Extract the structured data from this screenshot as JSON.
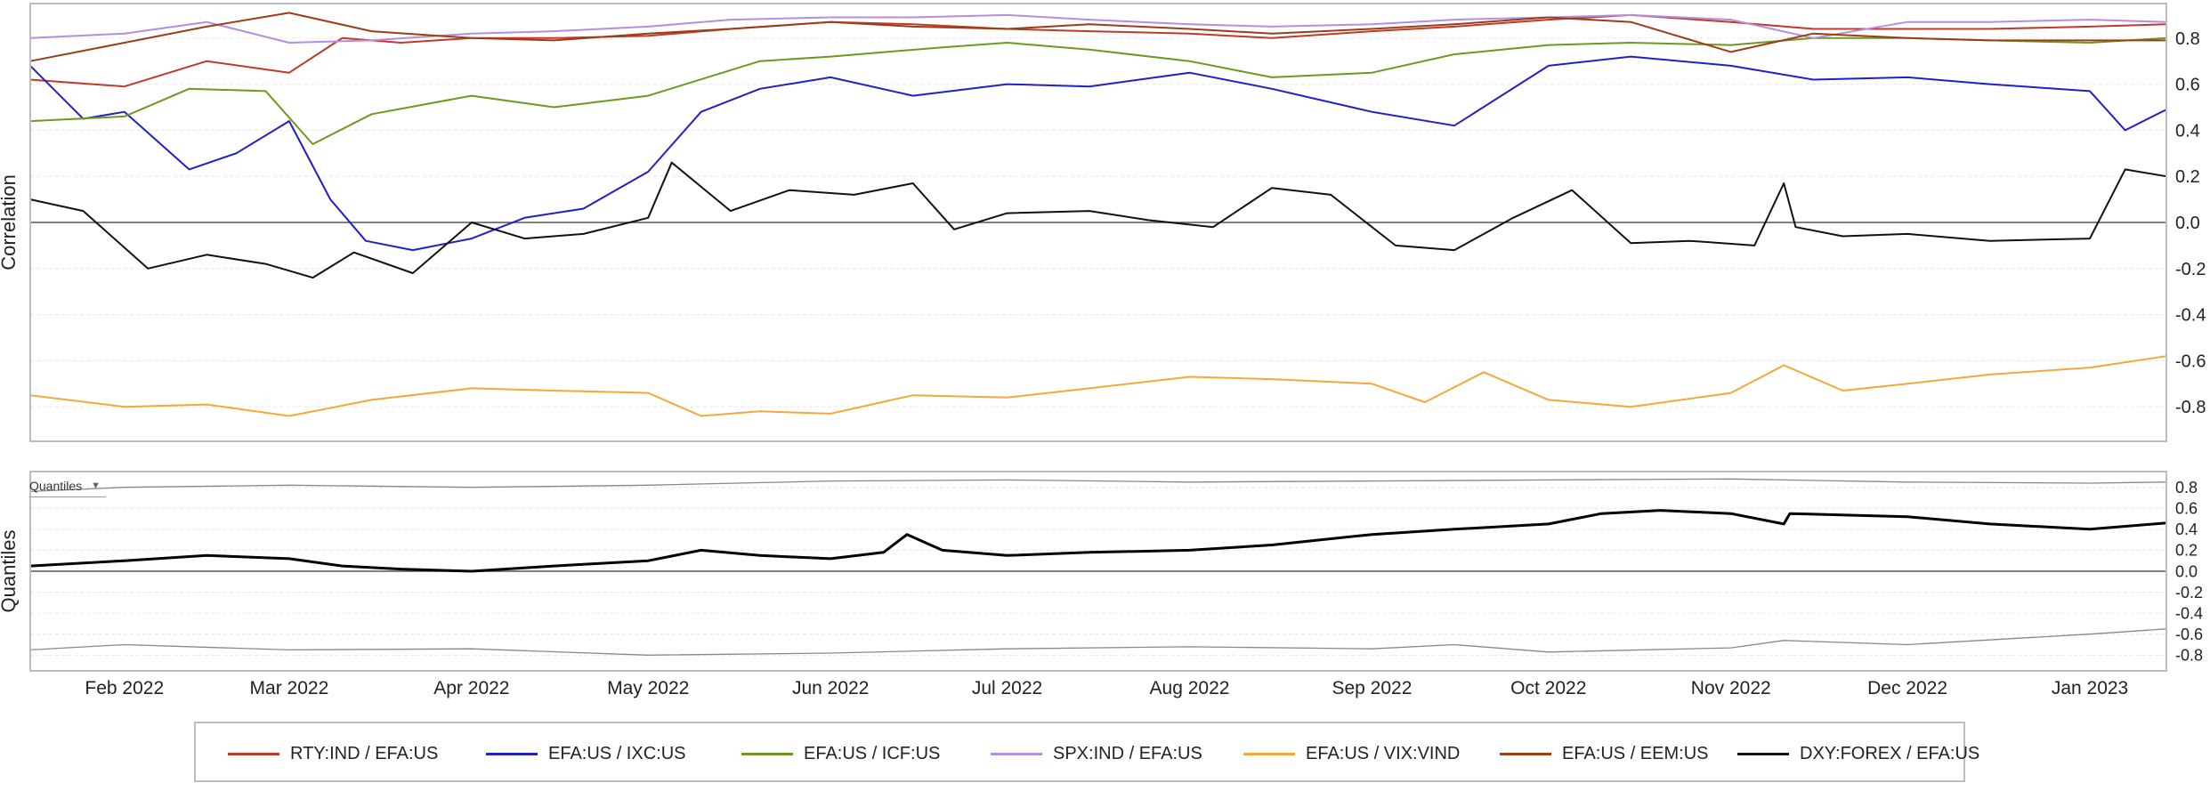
{
  "chart_data": [
    {
      "type": "line",
      "ylabel": "Correlation",
      "ylim": [
        -0.95,
        0.95
      ],
      "y_ticks": [
        "0.8",
        "0.6",
        "0.4",
        "0.2",
        "0.0",
        "-0.2",
        "-0.4",
        "-0.6",
        "-0.8"
      ],
      "x_ticks": [
        "Feb 2022",
        "Mar 2022",
        "Apr 2022",
        "May 2022",
        "Jun 2022",
        "Jul 2022",
        "Aug 2022",
        "Sep 2022",
        "Oct 2022",
        "Nov 2022",
        "Dec 2022",
        "Jan 2023"
      ],
      "xlim": [
        "2022-01-16",
        "2023-01-14"
      ],
      "grid": true,
      "series": [
        {
          "name": "RTY:IND / EFA:US",
          "color": "#c0392b",
          "x": [
            "2022-01-16",
            "2022-02-01",
            "2022-02-15",
            "2022-03-01",
            "2022-03-10",
            "2022-03-20",
            "2022-04-01",
            "2022-04-15",
            "2022-05-01",
            "2022-05-15",
            "2022-06-01",
            "2022-06-15",
            "2022-07-01",
            "2022-07-15",
            "2022-08-01",
            "2022-08-15",
            "2022-09-01",
            "2022-09-15",
            "2022-10-01",
            "2022-10-15",
            "2022-11-01",
            "2022-11-15",
            "2022-12-01",
            "2022-12-15",
            "2023-01-01",
            "2023-01-14"
          ],
          "values": [
            0.62,
            0.59,
            0.7,
            0.65,
            0.8,
            0.78,
            0.8,
            0.8,
            0.81,
            0.84,
            0.87,
            0.86,
            0.84,
            0.83,
            0.82,
            0.8,
            0.83,
            0.85,
            0.88,
            0.9,
            0.87,
            0.84,
            0.84,
            0.84,
            0.85,
            0.86
          ]
        },
        {
          "name": "EFA:US / IXC:US",
          "color": "#2020c8",
          "x": [
            "2022-01-16",
            "2022-01-25",
            "2022-02-01",
            "2022-02-12",
            "2022-02-20",
            "2022-03-01",
            "2022-03-08",
            "2022-03-14",
            "2022-03-22",
            "2022-04-01",
            "2022-04-10",
            "2022-04-20",
            "2022-05-01",
            "2022-05-10",
            "2022-05-20",
            "2022-06-01",
            "2022-06-15",
            "2022-07-01",
            "2022-07-15",
            "2022-08-01",
            "2022-08-15",
            "2022-09-01",
            "2022-09-15",
            "2022-10-01",
            "2022-10-15",
            "2022-11-01",
            "2022-11-15",
            "2022-12-01",
            "2022-12-15",
            "2023-01-01",
            "2023-01-07",
            "2023-01-14"
          ],
          "values": [
            0.68,
            0.45,
            0.48,
            0.23,
            0.3,
            0.44,
            0.1,
            -0.08,
            -0.12,
            -0.07,
            0.02,
            0.06,
            0.22,
            0.48,
            0.58,
            0.63,
            0.55,
            0.6,
            0.59,
            0.65,
            0.58,
            0.48,
            0.42,
            0.68,
            0.72,
            0.68,
            0.62,
            0.63,
            0.6,
            0.57,
            0.4,
            0.49
          ]
        },
        {
          "name": "EFA:US / ICF:US",
          "color": "#6b9a1e",
          "x": [
            "2022-01-16",
            "2022-02-01",
            "2022-02-12",
            "2022-02-25",
            "2022-03-05",
            "2022-03-15",
            "2022-04-01",
            "2022-04-15",
            "2022-05-01",
            "2022-05-20",
            "2022-06-01",
            "2022-06-20",
            "2022-07-01",
            "2022-07-15",
            "2022-08-01",
            "2022-08-15",
            "2022-09-01",
            "2022-09-15",
            "2022-10-01",
            "2022-10-15",
            "2022-11-01",
            "2022-11-15",
            "2022-12-01",
            "2022-12-15",
            "2023-01-01",
            "2023-01-14"
          ],
          "values": [
            0.44,
            0.46,
            0.58,
            0.57,
            0.34,
            0.47,
            0.55,
            0.5,
            0.55,
            0.7,
            0.72,
            0.76,
            0.78,
            0.75,
            0.7,
            0.63,
            0.65,
            0.73,
            0.77,
            0.78,
            0.77,
            0.8,
            0.8,
            0.79,
            0.78,
            0.8
          ]
        },
        {
          "name": "SPX:IND / EFA:US",
          "color": "#b48ee0",
          "x": [
            "2022-01-16",
            "2022-02-01",
            "2022-02-15",
            "2022-03-01",
            "2022-03-15",
            "2022-04-01",
            "2022-04-15",
            "2022-05-01",
            "2022-05-15",
            "2022-06-01",
            "2022-06-15",
            "2022-07-01",
            "2022-07-15",
            "2022-08-01",
            "2022-08-15",
            "2022-09-01",
            "2022-09-15",
            "2022-10-01",
            "2022-10-15",
            "2022-11-01",
            "2022-11-15",
            "2022-12-01",
            "2022-12-15",
            "2023-01-01",
            "2023-01-14"
          ],
          "values": [
            0.8,
            0.82,
            0.87,
            0.78,
            0.79,
            0.82,
            0.83,
            0.85,
            0.88,
            0.89,
            0.89,
            0.9,
            0.88,
            0.86,
            0.85,
            0.86,
            0.88,
            0.89,
            0.9,
            0.88,
            0.8,
            0.87,
            0.87,
            0.88,
            0.87
          ]
        },
        {
          "name": "EFA:US / VIX:VIND",
          "color": "#f4a83a",
          "x": [
            "2022-01-16",
            "2022-02-01",
            "2022-02-15",
            "2022-03-01",
            "2022-03-15",
            "2022-04-01",
            "2022-04-15",
            "2022-05-01",
            "2022-05-10",
            "2022-05-20",
            "2022-06-01",
            "2022-06-15",
            "2022-07-01",
            "2022-07-15",
            "2022-08-01",
            "2022-08-15",
            "2022-09-01",
            "2022-09-10",
            "2022-09-20",
            "2022-10-01",
            "2022-10-15",
            "2022-11-01",
            "2022-11-10",
            "2022-11-20",
            "2022-12-01",
            "2022-12-15",
            "2023-01-01",
            "2023-01-14"
          ],
          "values": [
            -0.75,
            -0.8,
            -0.79,
            -0.84,
            -0.77,
            -0.72,
            -0.73,
            -0.74,
            -0.84,
            -0.82,
            -0.83,
            -0.75,
            -0.76,
            -0.72,
            -0.67,
            -0.68,
            -0.7,
            -0.78,
            -0.65,
            -0.77,
            -0.8,
            -0.74,
            -0.62,
            -0.73,
            -0.7,
            -0.66,
            -0.63,
            -0.58
          ]
        },
        {
          "name": "EFA:US / EEM:US",
          "color": "#9c3d17",
          "x": [
            "2022-01-16",
            "2022-02-01",
            "2022-02-15",
            "2022-03-01",
            "2022-03-15",
            "2022-04-01",
            "2022-04-15",
            "2022-05-01",
            "2022-05-15",
            "2022-06-01",
            "2022-06-15",
            "2022-07-01",
            "2022-07-15",
            "2022-08-01",
            "2022-08-15",
            "2022-09-01",
            "2022-09-15",
            "2022-10-01",
            "2022-10-15",
            "2022-11-01",
            "2022-11-15",
            "2022-12-01",
            "2022-12-15",
            "2023-01-01",
            "2023-01-14"
          ],
          "values": [
            0.7,
            0.78,
            0.85,
            0.91,
            0.83,
            0.8,
            0.79,
            0.82,
            0.84,
            0.87,
            0.85,
            0.84,
            0.86,
            0.84,
            0.82,
            0.84,
            0.86,
            0.89,
            0.87,
            0.74,
            0.82,
            0.8,
            0.79,
            0.79,
            0.79
          ]
        },
        {
          "name": "DXY:FOREX / EFA:US",
          "color": "#111111",
          "x": [
            "2022-01-16",
            "2022-01-25",
            "2022-02-05",
            "2022-02-15",
            "2022-02-25",
            "2022-03-05",
            "2022-03-12",
            "2022-03-22",
            "2022-04-01",
            "2022-04-10",
            "2022-04-20",
            "2022-05-01",
            "2022-05-05",
            "2022-05-15",
            "2022-05-25",
            "2022-06-05",
            "2022-06-15",
            "2022-06-22",
            "2022-07-01",
            "2022-07-15",
            "2022-07-25",
            "2022-08-05",
            "2022-08-15",
            "2022-08-25",
            "2022-09-05",
            "2022-09-15",
            "2022-09-25",
            "2022-10-05",
            "2022-10-15",
            "2022-10-25",
            "2022-11-05",
            "2022-11-10",
            "2022-11-12",
            "2022-11-20",
            "2022-12-01",
            "2022-12-15",
            "2023-01-01",
            "2023-01-07",
            "2023-01-14"
          ],
          "values": [
            0.1,
            0.05,
            -0.2,
            -0.14,
            -0.18,
            -0.24,
            -0.13,
            -0.22,
            0.0,
            -0.07,
            -0.05,
            0.02,
            0.26,
            0.05,
            0.14,
            0.12,
            0.17,
            -0.03,
            0.04,
            0.05,
            0.01,
            -0.02,
            0.15,
            0.12,
            -0.1,
            -0.12,
            0.02,
            0.14,
            -0.09,
            -0.08,
            -0.1,
            0.17,
            -0.02,
            -0.06,
            -0.05,
            -0.08,
            -0.07,
            0.23,
            0.2
          ]
        }
      ]
    },
    {
      "type": "line",
      "ylabel": "Quantiles",
      "ylim": [
        -0.95,
        0.95
      ],
      "y_ticks": [
        "0.8",
        "0.6",
        "0.4",
        "0.2",
        "0.0",
        "-0.2",
        "-0.4",
        "-0.6",
        "-0.8"
      ],
      "grid": true,
      "series": [
        {
          "color": "#888888",
          "x": [
            "2022-01-16",
            "2022-02-01",
            "2022-03-01",
            "2022-04-01",
            "2022-05-01",
            "2022-06-01",
            "2022-07-01",
            "2022-08-01",
            "2022-09-01",
            "2022-10-01",
            "2022-11-01",
            "2022-12-01",
            "2023-01-01",
            "2023-01-14"
          ],
          "values": [
            0.76,
            0.8,
            0.82,
            0.8,
            0.82,
            0.86,
            0.87,
            0.85,
            0.86,
            0.87,
            0.88,
            0.85,
            0.84,
            0.85
          ]
        },
        {
          "color": "#000000",
          "x": [
            "2022-01-16",
            "2022-02-01",
            "2022-02-15",
            "2022-03-01",
            "2022-03-10",
            "2022-03-20",
            "2022-04-01",
            "2022-04-15",
            "2022-05-01",
            "2022-05-10",
            "2022-05-20",
            "2022-06-01",
            "2022-06-10",
            "2022-06-14",
            "2022-06-20",
            "2022-07-01",
            "2022-07-15",
            "2022-08-01",
            "2022-08-15",
            "2022-09-01",
            "2022-09-15",
            "2022-10-01",
            "2022-10-10",
            "2022-10-20",
            "2022-11-01",
            "2022-11-10",
            "2022-11-11",
            "2022-12-01",
            "2022-12-15",
            "2023-01-01",
            "2023-01-14"
          ],
          "values": [
            0.05,
            0.1,
            0.15,
            0.12,
            0.05,
            0.02,
            0.0,
            0.05,
            0.1,
            0.2,
            0.15,
            0.12,
            0.18,
            0.35,
            0.2,
            0.15,
            0.18,
            0.2,
            0.25,
            0.35,
            0.4,
            0.45,
            0.55,
            0.58,
            0.55,
            0.45,
            0.55,
            0.52,
            0.45,
            0.4,
            0.46
          ]
        },
        {
          "color": "#888888",
          "x": [
            "2022-01-16",
            "2022-02-01",
            "2022-03-01",
            "2022-04-01",
            "2022-05-01",
            "2022-06-01",
            "2022-07-01",
            "2022-08-01",
            "2022-09-01",
            "2022-09-15",
            "2022-10-01",
            "2022-11-01",
            "2022-11-10",
            "2022-12-01",
            "2023-01-01",
            "2023-01-14"
          ],
          "values": [
            -0.75,
            -0.7,
            -0.75,
            -0.74,
            -0.8,
            -0.78,
            -0.74,
            -0.72,
            -0.74,
            -0.7,
            -0.77,
            -0.73,
            -0.66,
            -0.7,
            -0.6,
            -0.55
          ]
        }
      ]
    }
  ],
  "controls": {
    "quantiles_label": "Quantiles"
  }
}
